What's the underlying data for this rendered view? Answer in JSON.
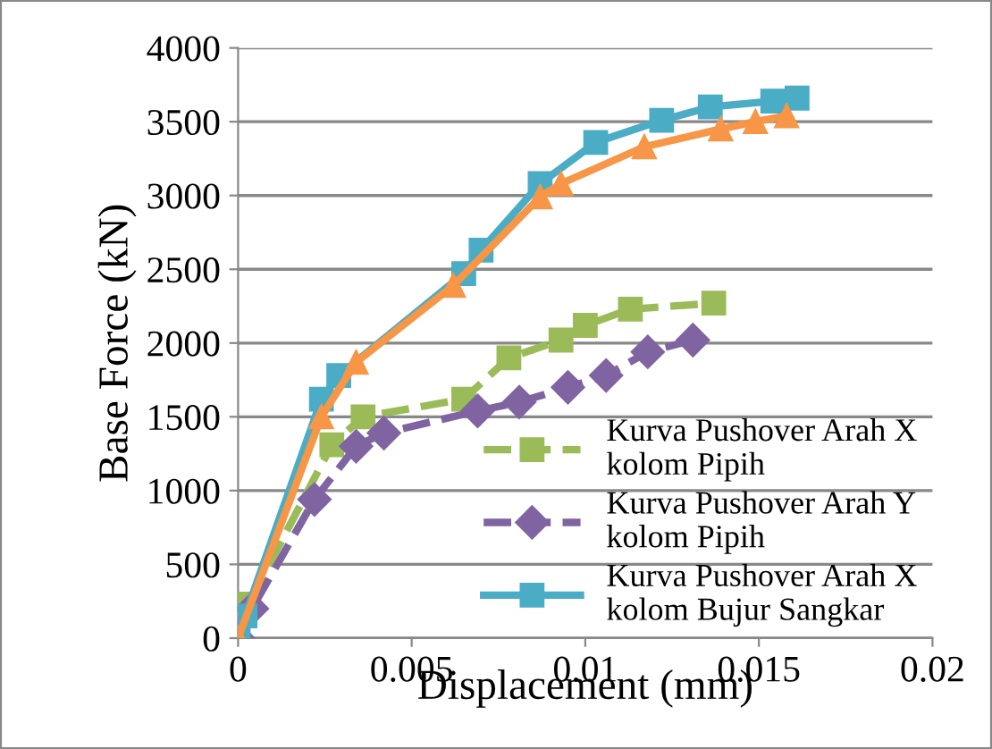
{
  "chart_data": {
    "type": "line",
    "xlabel": "Displacement (mm)",
    "ylabel": "Base Force (kN)",
    "xlim": [
      0,
      0.02
    ],
    "xticks": [
      0,
      0.005,
      0.01,
      0.015,
      0.02
    ],
    "ylim": [
      0,
      4000
    ],
    "yticks": [
      0,
      500,
      1000,
      1500,
      2000,
      2500,
      3000,
      3500,
      4000
    ],
    "grid": "y",
    "legend": "bottom right",
    "series": [
      {
        "name": "Kurva Pushover Arah X\nkolom Pipih",
        "color": "#9bbb59",
        "marker": "square",
        "line_style": "dashed",
        "x": [
          0,
          0.0003,
          0.0027,
          0.0036,
          0.0065,
          0.0078,
          0.0093,
          0.01,
          0.0113,
          0.0137
        ],
        "values": [
          0,
          230,
          1310,
          1500,
          1620,
          1900,
          2020,
          2120,
          2230,
          2270
        ]
      },
      {
        "name": "Kurva Pushover Arah Y\nkolom Pipih",
        "color": "#8064a2",
        "marker": "diamond",
        "line_style": "dashed",
        "x": [
          0,
          0.0004,
          0.0022,
          0.0034,
          0.0042,
          0.0069,
          0.0081,
          0.0095,
          0.0106,
          0.0118,
          0.0131
        ],
        "values": [
          0,
          200,
          940,
          1300,
          1390,
          1540,
          1600,
          1700,
          1780,
          1940,
          2020
        ]
      },
      {
        "name": "Kurva Pushover Arah X\nkolom Bujur Sangkar",
        "color": "#4bacc6",
        "marker": "square",
        "line_style": "solid",
        "x": [
          0,
          0.0002,
          0.0024,
          0.0029,
          0.0065,
          0.007,
          0.0087,
          0.0103,
          0.0122,
          0.0136,
          0.0154,
          0.0161
        ],
        "values": [
          0,
          150,
          1620,
          1780,
          2470,
          2630,
          3080,
          3360,
          3510,
          3600,
          3640,
          3660
        ]
      },
      {
        "color": "#f79646",
        "marker": "triangle",
        "line_style": "solid",
        "x": [
          0,
          0.0024,
          0.0034,
          0.0062,
          0.0087,
          0.0093,
          0.0117,
          0.0139,
          0.0149,
          0.0158
        ],
        "values": [
          0,
          1500,
          1870,
          2390,
          2990,
          3080,
          3330,
          3450,
          3500,
          3540
        ]
      }
    ]
  }
}
